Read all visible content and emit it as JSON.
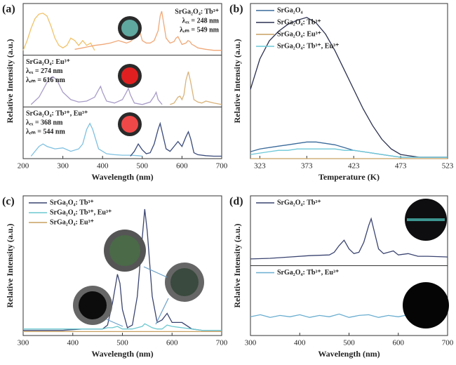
{
  "chart_data": [
    {
      "type": "line",
      "label": "(a)",
      "xlabel": "Wavelength (nm)",
      "ylabel": "Relative Intensity (a.u.)",
      "xlim": [
        200,
        700
      ],
      "xticks": [
        200,
        300,
        400,
        500,
        600,
        700
      ],
      "panels": [
        {
          "ylim": [
            0,
            1
          ],
          "annotations": [
            "SrGa₂O₄: Tb³⁺",
            "λₑₓ = 248 nm",
            "λₑₘ = 549 nm"
          ],
          "series": [
            {
              "color": "#f0c26a",
              "x": [
                200,
                210,
                220,
                230,
                240,
                250,
                260,
                270,
                280,
                290,
                300,
                310,
                320,
                330,
                340,
                350,
                360,
                370,
                380
              ],
              "values": [
                0.1,
                0.3,
                0.55,
                0.75,
                0.84,
                0.86,
                0.8,
                0.6,
                0.35,
                0.2,
                0.15,
                0.2,
                0.35,
                0.3,
                0.2,
                0.3,
                0.2,
                0.25,
                0.1
              ]
            },
            {
              "color": "#f0a878",
              "x": [
                330,
                350,
                380,
                400,
                420,
                440,
                460,
                470,
                480,
                485,
                490,
                495,
                500,
                510,
                520,
                530,
                540,
                545,
                549,
                553,
                560,
                570,
                580,
                585,
                590,
                595,
                600,
                610,
                615,
                620,
                625,
                630,
                640,
                660,
                680,
                700
              ],
              "values": [
                0.12,
                0.15,
                0.2,
                0.22,
                0.25,
                0.3,
                0.25,
                0.28,
                0.35,
                0.5,
                0.6,
                0.45,
                0.3,
                0.25,
                0.25,
                0.3,
                0.5,
                0.8,
                0.9,
                0.7,
                0.35,
                0.25,
                0.28,
                0.35,
                0.38,
                0.3,
                0.22,
                0.25,
                0.3,
                0.28,
                0.22,
                0.2,
                0.15,
                0.12,
                0.1,
                0.1
              ]
            }
          ]
        },
        {
          "ylim": [
            0,
            1
          ],
          "annotations": [
            "SrGa₂O₄: Eu³⁺",
            "λₑₓ = 274 nm",
            "λₑₘ = 616 nm"
          ],
          "series": [
            {
              "color": "#a89cc8",
              "x": [
                220,
                240,
                260,
                270,
                275,
                285,
                300,
                320,
                340,
                360,
                380,
                390,
                395,
                400,
                410,
                430,
                450,
                460,
                465,
                470,
                480,
                500,
                520,
                530,
                535,
                540,
                550
              ],
              "values": [
                0.05,
                0.2,
                0.5,
                0.6,
                0.62,
                0.55,
                0.3,
                0.15,
                0.1,
                0.12,
                0.2,
                0.35,
                0.42,
                0.3,
                0.12,
                0.08,
                0.15,
                0.3,
                0.38,
                0.25,
                0.08,
                0.05,
                0.1,
                0.22,
                0.3,
                0.15,
                0.05
              ]
            },
            {
              "color": "#d9b37a",
              "x": [
                570,
                580,
                590,
                595,
                600,
                605,
                610,
                616,
                622,
                630,
                640,
                650,
                660,
                680,
                700
              ],
              "values": [
                0.05,
                0.08,
                0.2,
                0.22,
                0.15,
                0.25,
                0.55,
                0.72,
                0.5,
                0.15,
                0.1,
                0.08,
                0.12,
                0.08,
                0.05
              ]
            }
          ]
        },
        {
          "ylim": [
            0,
            1
          ],
          "annotations": [
            "SrGa₂O₄: Tb³⁺, Eu³⁺",
            "λₑₓ = 368 nm",
            "λₑₘ = 544 nm"
          ],
          "series": [
            {
              "color": "#7ec0e0",
              "x": [
                220,
                240,
                250,
                260,
                280,
                300,
                320,
                340,
                350,
                360,
                368,
                375,
                390,
                410,
                430,
                450,
                470,
                490,
                500
              ],
              "values": [
                0.05,
                0.25,
                0.3,
                0.25,
                0.2,
                0.22,
                0.15,
                0.2,
                0.3,
                0.6,
                0.72,
                0.6,
                0.2,
                0.1,
                0.08,
                0.07,
                0.07,
                0.06,
                0.05
              ]
            },
            {
              "color": "#3a4a7a",
              "x": [
                470,
                480,
                490,
                500,
                510,
                520,
                530,
                540,
                545,
                550,
                560,
                570,
                580,
                590,
                600,
                610,
                616,
                622,
                630,
                640,
                660,
                680,
                700
              ],
              "values": [
                0.05,
                0.15,
                0.3,
                0.18,
                0.1,
                0.12,
                0.3,
                0.6,
                0.72,
                0.55,
                0.2,
                0.15,
                0.25,
                0.35,
                0.25,
                0.45,
                0.55,
                0.4,
                0.12,
                0.08,
                0.06,
                0.05,
                0.05
              ]
            }
          ]
        }
      ]
    },
    {
      "type": "line",
      "label": "(b)",
      "xlabel": "Temperature (K)",
      "ylabel": "Relative Intensity (a.u.)",
      "xlim": [
        313,
        523
      ],
      "xticks": [
        323,
        373,
        423,
        473,
        523
      ],
      "panels": [
        {
          "ylim": [
            0,
            1.1
          ],
          "x": [
            313,
            323,
            333,
            343,
            353,
            363,
            373,
            383,
            393,
            403,
            413,
            423,
            433,
            443,
            453,
            463,
            473,
            483,
            493,
            503,
            513,
            523
          ],
          "series": [
            {
              "name": "SrGa₂O₄",
              "color": "#3a6a9a",
              "values": [
                0.05,
                0.07,
                0.08,
                0.09,
                0.1,
                0.11,
                0.12,
                0.12,
                0.11,
                0.1,
                0.08,
                0.06,
                0.05,
                0.04,
                0.03,
                0.02,
                0.01,
                0.01,
                0.01,
                0.01,
                0.01,
                0.01
              ]
            },
            {
              "name": "SrGa₂O₄: Tb³⁺",
              "color": "#2b3050",
              "values": [
                0.5,
                0.72,
                0.85,
                0.92,
                0.97,
                1.0,
                1.02,
                0.98,
                0.9,
                0.78,
                0.64,
                0.5,
                0.36,
                0.24,
                0.14,
                0.07,
                0.03,
                0.02,
                0.01,
                0.01,
                0.01,
                0.01
              ]
            },
            {
              "name": "SrGa₂O₄: Eu³⁺",
              "color": "#c8a060",
              "values": [
                0,
                0,
                0,
                0,
                0,
                0,
                0,
                0,
                0,
                0,
                0,
                0,
                0,
                0,
                0,
                0,
                0,
                0,
                0,
                0,
                0,
                0
              ]
            },
            {
              "name": "SrGa₂O₄: Tb³⁺, Eu³⁺",
              "color": "#6cc8d8",
              "values": [
                0.03,
                0.04,
                0.05,
                0.06,
                0.06,
                0.07,
                0.07,
                0.07,
                0.07,
                0.07,
                0.06,
                0.06,
                0.05,
                0.04,
                0.03,
                0.02,
                0.01,
                0.01,
                0.01,
                0.01,
                0.01,
                0.01
              ]
            }
          ]
        }
      ]
    },
    {
      "type": "line",
      "label": "(c)",
      "xlabel": "Wavelength (nm)",
      "ylabel": "Relative Intensity (a.u.)",
      "xlim": [
        300,
        700
      ],
      "xticks": [
        300,
        400,
        500,
        600,
        700
      ],
      "panels": [
        {
          "ylim": [
            0,
            1.05
          ],
          "x": [
            300,
            340,
            380,
            420,
            460,
            470,
            480,
            490,
            495,
            500,
            510,
            520,
            530,
            540,
            545,
            550,
            560,
            570,
            580,
            590,
            600,
            620,
            640,
            660,
            700
          ],
          "series": [
            {
              "name": "SrGa₂O₄: Tb³⁺",
              "color": "#3a4470",
              "values": [
                0.04,
                0.04,
                0.04,
                0.05,
                0.05,
                0.08,
                0.25,
                0.47,
                0.4,
                0.2,
                0.06,
                0.08,
                0.3,
                0.75,
                0.97,
                0.8,
                0.3,
                0.1,
                0.12,
                0.17,
                0.1,
                0.1,
                0.05,
                0.04,
                0.04
              ]
            },
            {
              "name": "SrGa₂O₄: Tb³⁺, Eu³⁺",
              "color": "#6cc8d0",
              "values": [
                0.05,
                0.05,
                0.05,
                0.05,
                0.05,
                0.06,
                0.06,
                0.07,
                0.06,
                0.05,
                0.05,
                0.05,
                0.06,
                0.07,
                0.09,
                0.08,
                0.06,
                0.05,
                0.05,
                0.08,
                0.07,
                0.06,
                0.05,
                0.04,
                0.04
              ]
            },
            {
              "name": "SrGa₂O₄: Eu³⁺",
              "color": "#c8a060",
              "values": [
                0.03,
                0.03,
                0.03,
                0.03,
                0.03,
                0.03,
                0.03,
                0.03,
                0.03,
                0.03,
                0.03,
                0.03,
                0.03,
                0.03,
                0.03,
                0.03,
                0.03,
                0.03,
                0.03,
                0.03,
                0.03,
                0.03,
                0.03,
                0.03,
                0.03
              ]
            }
          ]
        }
      ]
    },
    {
      "type": "line",
      "label": "(d)",
      "xlabel": "Wavelength (nm)",
      "ylabel": "Relative Intensity (a.u.)",
      "xlim": [
        300,
        700
      ],
      "xticks": [
        300,
        400,
        500,
        600,
        700
      ],
      "panels": [
        {
          "ylim": [
            0,
            1
          ],
          "x": [
            300,
            340,
            380,
            420,
            460,
            470,
            480,
            490,
            500,
            510,
            520,
            530,
            540,
            545,
            550,
            560,
            570,
            580,
            590,
            600,
            620,
            640,
            660,
            700
          ],
          "series": [
            {
              "name": "SrGa₂O₄: Tb³⁺",
              "color": "#3a4470",
              "values": [
                0.1,
                0.11,
                0.13,
                0.15,
                0.16,
                0.2,
                0.3,
                0.38,
                0.25,
                0.18,
                0.2,
                0.35,
                0.6,
                0.7,
                0.55,
                0.25,
                0.18,
                0.2,
                0.22,
                0.16,
                0.18,
                0.14,
                0.14,
                0.13
              ]
            }
          ]
        },
        {
          "ylim": [
            0,
            1
          ],
          "x": [
            300,
            320,
            340,
            360,
            380,
            400,
            420,
            440,
            460,
            480,
            500,
            520,
            540,
            560,
            580,
            600,
            620,
            640,
            660,
            680,
            700
          ],
          "series": [
            {
              "name": "SrGa₂O₄: Tb³⁺, Eu³⁺",
              "color": "#6aaed0",
              "values": [
                0.28,
                0.31,
                0.27,
                0.3,
                0.28,
                0.31,
                0.27,
                0.3,
                0.28,
                0.32,
                0.27,
                0.3,
                0.31,
                0.27,
                0.3,
                0.28,
                0.31,
                0.29,
                0.3,
                0.33,
                0.32
              ]
            }
          ]
        }
      ]
    }
  ]
}
